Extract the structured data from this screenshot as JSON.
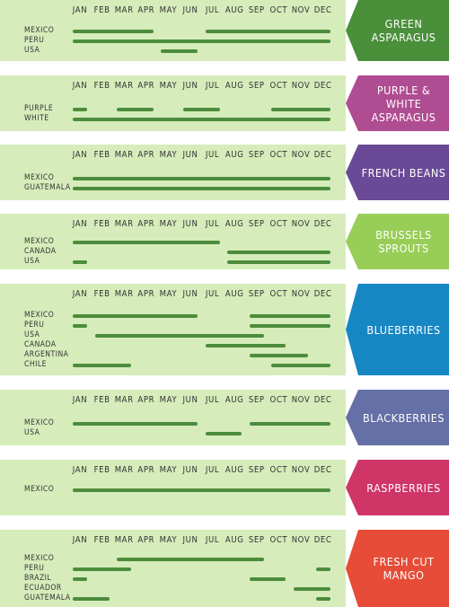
{
  "months": [
    "JAN",
    "FEB",
    "MAR",
    "APR",
    "MAY",
    "JUN",
    "JUL",
    "AUG",
    "SEP",
    "OCT",
    "NOV",
    "DEC"
  ],
  "colors": {
    "panel_bg": "#d6ecbb",
    "bar": "#4c8c3c",
    "text": "#333333"
  },
  "chart_data": {
    "type": "gantt",
    "x_unit": "month",
    "categories": [
      "JAN",
      "FEB",
      "MAR",
      "APR",
      "MAY",
      "JUN",
      "JUL",
      "AUG",
      "SEP",
      "OCT",
      "NOV",
      "DEC"
    ],
    "products": [
      {
        "name_lines": [
          "GREEN",
          "ASPARAGUS"
        ],
        "color": "#4a8f3a",
        "series": [
          {
            "name": "MEXICO",
            "ranges": [
              [
                1,
                4
              ],
              [
                7,
                12
              ]
            ]
          },
          {
            "name": "PERU",
            "ranges": [
              [
                1,
                12
              ]
            ]
          },
          {
            "name": "USA",
            "ranges": [
              [
                5,
                6
              ]
            ]
          }
        ]
      },
      {
        "name_lines": [
          "PURPLE & WHITE",
          "ASPARAGUS"
        ],
        "color": "#b04c92",
        "series": [
          {
            "name": "PURPLE",
            "ranges": [
              [
                1,
                1
              ],
              [
                3,
                4
              ],
              [
                6,
                7
              ],
              [
                10,
                12
              ]
            ]
          },
          {
            "name": "WHITE",
            "ranges": [
              [
                1,
                12
              ]
            ]
          }
        ]
      },
      {
        "name_lines": [
          "FRENCH BEANS"
        ],
        "color": "#6a4a96",
        "series": [
          {
            "name": "MEXICO",
            "ranges": [
              [
                1,
                12
              ]
            ]
          },
          {
            "name": "GUATEMALA",
            "ranges": [
              [
                1,
                12
              ]
            ]
          }
        ]
      },
      {
        "name_lines": [
          "BRUSSELS",
          "SPROUTS"
        ],
        "color": "#98cd57",
        "series": [
          {
            "name": "MEXICO",
            "ranges": [
              [
                1,
                7
              ]
            ]
          },
          {
            "name": "CANADA",
            "ranges": [
              [
                8,
                12
              ]
            ]
          },
          {
            "name": "USA",
            "ranges": [
              [
                1,
                1
              ],
              [
                8,
                12
              ]
            ]
          }
        ]
      },
      {
        "name_lines": [
          "BLUEBERRIES"
        ],
        "color": "#1787c3",
        "series": [
          {
            "name": "MEXICO",
            "ranges": [
              [
                1,
                6
              ],
              [
                9,
                12
              ]
            ]
          },
          {
            "name": "PERU",
            "ranges": [
              [
                1,
                1
              ],
              [
                9,
                12
              ]
            ]
          },
          {
            "name": "USA",
            "ranges": [
              [
                2,
                9
              ]
            ]
          },
          {
            "name": "CANADA",
            "ranges": [
              [
                7,
                10
              ]
            ]
          },
          {
            "name": "ARGENTINA",
            "ranges": [
              [
                9,
                11
              ]
            ]
          },
          {
            "name": "CHILE",
            "ranges": [
              [
                1,
                3
              ],
              [
                10,
                12
              ]
            ]
          }
        ]
      },
      {
        "name_lines": [
          "BLACKBERRIES"
        ],
        "color": "#6470a6",
        "series": [
          {
            "name": "MEXICO",
            "ranges": [
              [
                1,
                6
              ],
              [
                9,
                12
              ]
            ]
          },
          {
            "name": "USA",
            "ranges": [
              [
                7,
                8
              ]
            ]
          }
        ]
      },
      {
        "name_lines": [
          "RASPBERRIES"
        ],
        "color": "#cf3567",
        "series": [
          {
            "name": "MEXICO",
            "ranges": [
              [
                1,
                12
              ]
            ]
          }
        ]
      },
      {
        "name_lines": [
          "FRESH CUT",
          "MANGO"
        ],
        "color": "#e64c37",
        "series": [
          {
            "name": "MEXICO",
            "ranges": [
              [
                3,
                9
              ]
            ]
          },
          {
            "name": "PERU",
            "ranges": [
              [
                1,
                3
              ],
              [
                12,
                12
              ]
            ]
          },
          {
            "name": "BRAZIL",
            "ranges": [
              [
                1,
                1
              ],
              [
                9,
                10
              ]
            ]
          },
          {
            "name": "ECUADOR",
            "ranges": [
              [
                11,
                12
              ]
            ]
          },
          {
            "name": "GUATEMALA",
            "ranges": [
              [
                1,
                2
              ],
              [
                12,
                12
              ]
            ]
          }
        ]
      }
    ]
  }
}
